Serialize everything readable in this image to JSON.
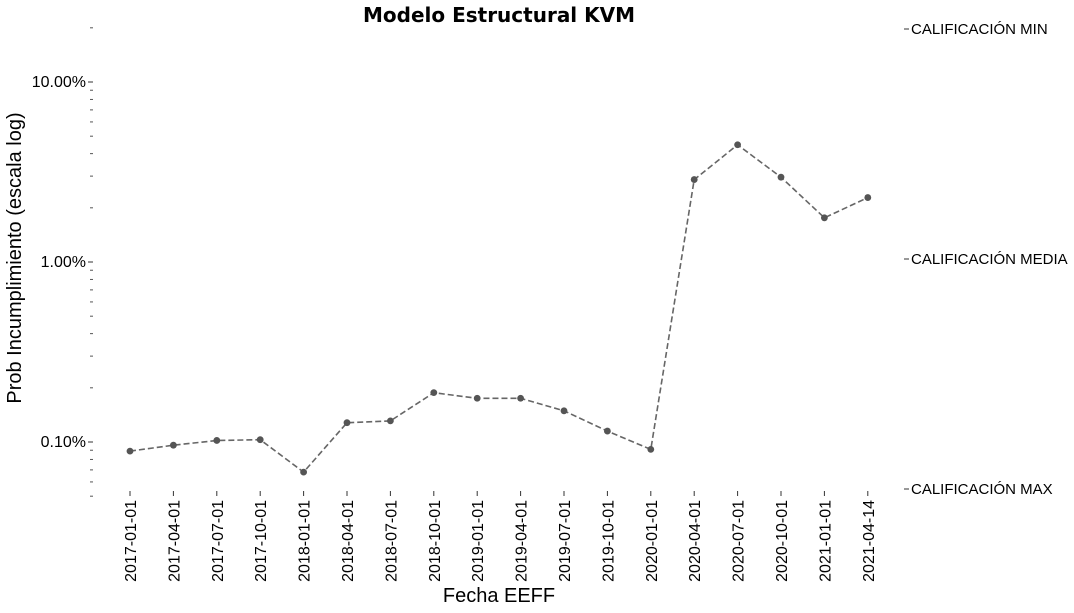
{
  "chart_data": {
    "type": "line",
    "title": "Modelo Estructural KVM",
    "xlabel": "Fecha EEFF",
    "ylabel": "Prob Incumplimiento (escala log)",
    "y_scale": "log",
    "ylim": [
      0.05,
      20
    ],
    "y_ticks": [
      0.1,
      1,
      10
    ],
    "y_tick_labels": [
      "0.10%",
      "1.00%",
      "10.00%"
    ],
    "grid": false,
    "categories": [
      "2017-01-01",
      "2017-04-01",
      "2017-07-01",
      "2017-10-01",
      "2018-01-01",
      "2018-04-01",
      "2018-07-01",
      "2018-10-01",
      "2019-01-01",
      "2019-04-01",
      "2019-07-01",
      "2019-10-01",
      "2020-01-01",
      "2020-04-01",
      "2020-07-01",
      "2020-10-01",
      "2021-01-01",
      "2021-04-14"
    ],
    "series": [
      {
        "values": [
          0.089,
          0.096,
          0.102,
          0.103,
          0.068,
          0.128,
          0.131,
          0.188,
          0.175,
          0.175,
          0.149,
          0.115,
          0.091,
          2.87,
          4.48,
          2.96,
          1.76,
          2.28
        ],
        "color": "#666666",
        "style": "dashed",
        "marker": "circle"
      }
    ],
    "secondary_y": {
      "labels": [
        "CALIFICACIÓN MIN",
        "CALIFICACIÓN MEDIA",
        "CALIFICACIÓN MAX"
      ]
    }
  }
}
